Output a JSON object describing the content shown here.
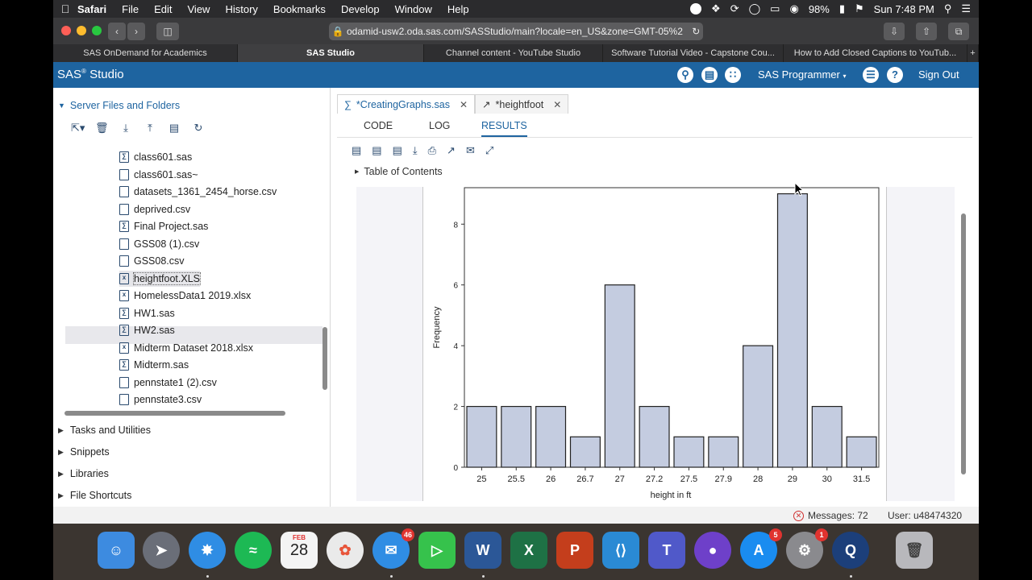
{
  "menubar": {
    "app": "Safari",
    "items": [
      "File",
      "Edit",
      "View",
      "History",
      "Bookmarks",
      "Develop",
      "Window",
      "Help"
    ],
    "battery": "98%",
    "clock": "Sun 7:48 PM"
  },
  "safari": {
    "url": "odamid-usw2.oda.sas.com/SASStudio/main?locale=en_US&zone=GMT-05%2",
    "tabs": [
      "SAS OnDemand for Academics",
      "SAS Studio",
      "Channel content - YouTube Studio",
      "Software Tutorial Video - Capstone Cou...",
      "How to Add Closed Captions to YouTub..."
    ]
  },
  "sas": {
    "brand": "SAS",
    "brand_suffix": "Studio",
    "programmer": "SAS Programmer",
    "signout": "Sign Out"
  },
  "left": {
    "section_title": "Server Files and Folders",
    "files": [
      {
        "name": "class601.sas",
        "icon": "sas-program-icon"
      },
      {
        "name": "class601.sas~",
        "icon": "file-icon"
      },
      {
        "name": "datasets_1361_2454_horse.csv",
        "icon": "csv-icon"
      },
      {
        "name": "deprived.csv",
        "icon": "csv-icon"
      },
      {
        "name": "Final Project.sas",
        "icon": "sas-program-icon"
      },
      {
        "name": "GSS08 (1).csv",
        "icon": "csv-icon"
      },
      {
        "name": "GSS08.csv",
        "icon": "csv-icon"
      },
      {
        "name": "heightfoot.XLS",
        "icon": "excel-icon"
      },
      {
        "name": "HomelessData1 2019.xlsx",
        "icon": "excel-icon"
      },
      {
        "name": "HW1.sas",
        "icon": "sas-program-icon"
      },
      {
        "name": "HW2.sas",
        "icon": "sas-program-icon"
      },
      {
        "name": "Midterm Dataset 2018.xlsx",
        "icon": "excel-icon"
      },
      {
        "name": "Midterm.sas",
        "icon": "sas-program-icon"
      },
      {
        "name": "pennstate1 (2).csv",
        "icon": "csv-icon"
      },
      {
        "name": "pennstate3.csv",
        "icon": "csv-icon"
      }
    ],
    "categories": [
      "Tasks and Utilities",
      "Snippets",
      "Libraries",
      "File Shortcuts"
    ]
  },
  "right": {
    "doc_tabs": [
      "*CreatingGraphs.sas",
      "*heightfoot"
    ],
    "sub_tabs": [
      "CODE",
      "LOG",
      "RESULTS"
    ],
    "toc": "Table of Contents"
  },
  "chart_data": {
    "type": "bar",
    "categories": [
      "25",
      "25.5",
      "26",
      "26.7",
      "27",
      "27.2",
      "27.5",
      "27.9",
      "28",
      "29",
      "30",
      "31.5"
    ],
    "values": [
      2,
      2,
      2,
      1,
      6,
      2,
      1,
      1,
      4,
      9,
      2,
      1
    ],
    "xlabel": "height in ft",
    "ylabel": "Frequency",
    "ylim": [
      0,
      9.2
    ],
    "yticks": [
      "0",
      "2",
      "4",
      "6",
      "8"
    ],
    "bar_color": "#c4cce0",
    "grid": false
  },
  "status": {
    "messages": "Messages: 72",
    "user": "User: u48474320"
  },
  "dock": {
    "calendar_month": "FEB",
    "calendar_day": "28",
    "badges": {
      "messages": "46",
      "appstore": "5",
      "settings": "1"
    }
  }
}
